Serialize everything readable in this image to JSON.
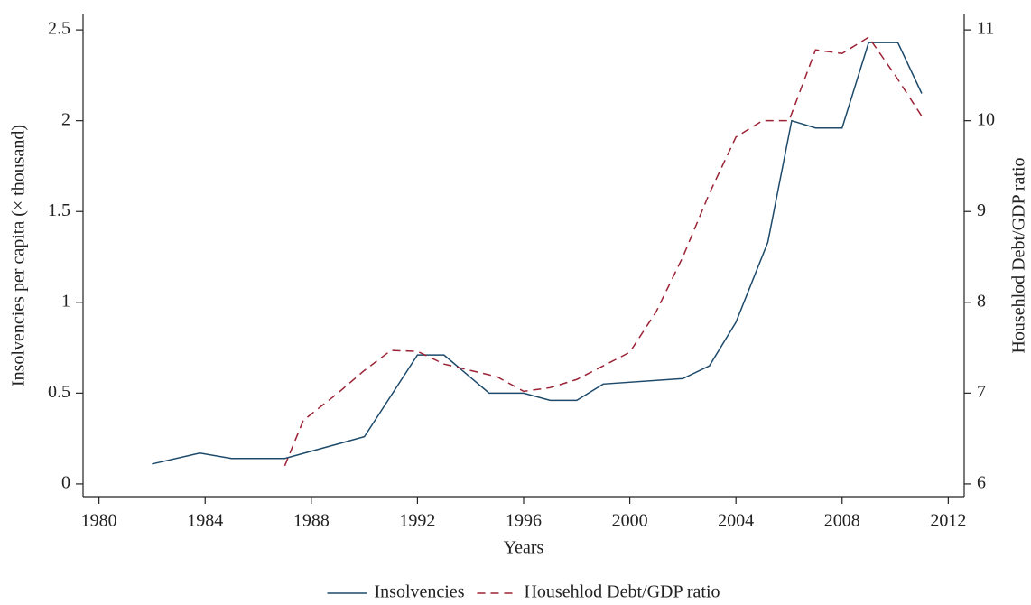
{
  "chart_data": {
    "type": "line",
    "x_label": "Years",
    "y_label": "Insolvencies per capita (× thousand)",
    "y2_label": "Househlod Debt/GDP ratio",
    "xlim": [
      1979.4,
      2012.6
    ],
    "xticks": [
      1980,
      1984,
      1988,
      1992,
      1996,
      2000,
      2004,
      2008,
      2012
    ],
    "ylim": [
      -0.07,
      2.59
    ],
    "yticks": [
      0,
      0.5,
      1,
      1.5,
      2,
      2.5
    ],
    "y2lim": [
      5.86,
      11.18
    ],
    "y2ticks": [
      6,
      7,
      8,
      9,
      10,
      11
    ],
    "legend": "bottom",
    "series": [
      {
        "name": "Insolvencies",
        "color": "#1d4a6b",
        "dash": "solid",
        "axis": "y",
        "x": [
          1982,
          1983.8,
          1985,
          1987,
          1990,
          1992,
          1993,
          1994.7,
          1996,
          1997,
          1998,
          1999,
          2002,
          2003,
          2004,
          2005.2,
          2006.1,
          2007,
          2008,
          2009,
          2010.1,
          2011
        ],
        "values": [
          0.11,
          0.17,
          0.14,
          0.14,
          0.26,
          0.71,
          0.71,
          0.5,
          0.5,
          0.46,
          0.46,
          0.55,
          0.58,
          0.65,
          0.89,
          1.33,
          2.0,
          1.96,
          1.96,
          2.43,
          2.43,
          2.15
        ]
      },
      {
        "name": "Househlod Debt/GDP ratio",
        "color": "#9b2335",
        "dash": "dashed",
        "axis": "y2",
        "x": [
          1987,
          1987.7,
          1989,
          1990,
          1991,
          1992,
          1993,
          1994,
          1995,
          1996,
          1997,
          1998,
          1999,
          2000,
          2001,
          2002,
          2003,
          2004,
          2005,
          2006,
          2007,
          2008,
          2009,
          2010,
          2011
        ],
        "values": [
          6.2,
          6.7,
          7.0,
          7.25,
          7.47,
          7.46,
          7.32,
          7.25,
          7.18,
          7.02,
          7.06,
          7.15,
          7.3,
          7.45,
          7.9,
          8.5,
          9.2,
          9.82,
          10.0,
          10.0,
          10.78,
          10.74,
          10.92,
          10.5,
          10.05
        ]
      }
    ]
  }
}
